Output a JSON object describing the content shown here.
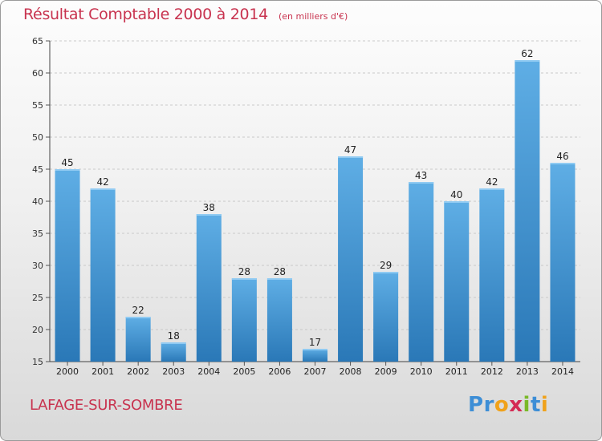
{
  "header": {
    "title": "Résultat Comptable 2000 à 2014",
    "unit": "(en milliers d'€)"
  },
  "footer": {
    "town": "LAFAGE-SUR-SOMBRE",
    "logo_letters": [
      "P",
      "r",
      "o",
      "x",
      "i",
      "t",
      "i"
    ]
  },
  "colors": {
    "title": "#c8334f",
    "bar_light": "#5faee5",
    "bar_dark": "#2a78b7",
    "logo": [
      "#3d8ed6",
      "#3d8ed6",
      "#f0a21b",
      "#d42a54",
      "#7ab928",
      "#3d8ed6",
      "#f0a21b"
    ]
  },
  "chart_data": {
    "type": "bar",
    "title": "Résultat Comptable 2000 à 2014",
    "subtitle": "(en milliers d'€)",
    "xlabel": "",
    "ylabel": "",
    "categories": [
      "2000",
      "2001",
      "2002",
      "2003",
      "2004",
      "2005",
      "2006",
      "2007",
      "2008",
      "2009",
      "2010",
      "2011",
      "2012",
      "2013",
      "2014"
    ],
    "values": [
      45,
      42,
      22,
      18,
      38,
      28,
      28,
      17,
      47,
      29,
      43,
      40,
      42,
      62,
      46
    ],
    "ylim": [
      15,
      65
    ],
    "yticks": [
      15,
      20,
      25,
      30,
      35,
      40,
      45,
      50,
      55,
      60,
      65
    ],
    "grid": true
  }
}
